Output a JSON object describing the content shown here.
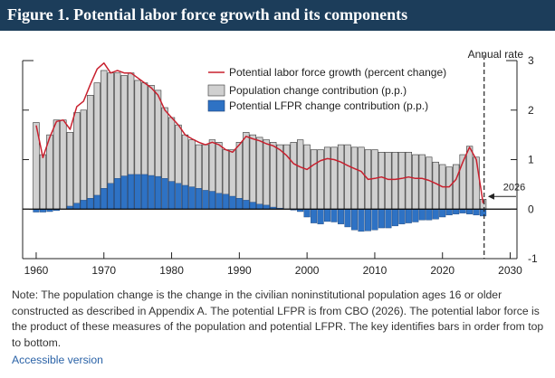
{
  "title": "Figure 1. Potential labor force growth and its components",
  "note": "Note: The population change is the change in the civilian noninstitutional population ages 16 or older constructed as described in Appendix A. The potential LFPR is from CBO (2026). The potential labor force is the product of these measures of the population and potential LFPR. The key identifies bars in order from top to bottom.",
  "accessible_link": "Accessible version",
  "colors": {
    "population": "#d0d0d0",
    "lfpr": "#2e72c4",
    "line": "#c8202e",
    "title_bg": "#1c3d5a"
  },
  "chart_data": {
    "type": "bar",
    "title": "Figure 1. Potential labor force growth and its components",
    "right_axis_label": "Annual rate",
    "projection_marker": {
      "x": 2026,
      "label": "2026"
    },
    "xlim": [
      1958,
      2031
    ],
    "ylim": [
      -1,
      3
    ],
    "x_ticks": [
      1960,
      1970,
      1980,
      1990,
      2000,
      2010,
      2020,
      2030
    ],
    "x_tick_labels": [
      "1960",
      "1970",
      "1980",
      "1990",
      "2000",
      "2010",
      "2020",
      "2030"
    ],
    "y_ticks": [
      -1,
      0,
      1,
      2,
      3
    ],
    "y_tick_labels": [
      "-1",
      "0",
      "1",
      "2",
      "3"
    ],
    "legend": [
      {
        "label": "Potential labor force growth (percent change)",
        "kind": "line"
      },
      {
        "label": "Population change contribution (p.p.)",
        "kind": "bar-gray"
      },
      {
        "label": "Potential LFPR change contribution (p.p.)",
        "kind": "bar-blue"
      }
    ],
    "x": [
      1960,
      1961,
      1962,
      1963,
      1964,
      1965,
      1966,
      1967,
      1968,
      1969,
      1970,
      1971,
      1972,
      1973,
      1974,
      1975,
      1976,
      1977,
      1978,
      1979,
      1980,
      1981,
      1982,
      1983,
      1984,
      1985,
      1986,
      1987,
      1988,
      1989,
      1990,
      1991,
      1992,
      1993,
      1994,
      1995,
      1996,
      1997,
      1998,
      1999,
      2000,
      2001,
      2002,
      2003,
      2004,
      2005,
      2006,
      2007,
      2008,
      2009,
      2010,
      2011,
      2012,
      2013,
      2014,
      2015,
      2016,
      2017,
      2018,
      2019,
      2020,
      2021,
      2022,
      2023,
      2024,
      2025,
      2026
    ],
    "series": [
      {
        "name": "Population change contribution (p.p.)",
        "values": [
          1.75,
          1.1,
          1.5,
          1.8,
          1.8,
          1.55,
          1.95,
          2.0,
          2.3,
          2.55,
          2.8,
          2.75,
          2.75,
          2.7,
          2.75,
          2.6,
          2.55,
          2.5,
          2.4,
          2.05,
          1.85,
          1.7,
          1.5,
          1.4,
          1.3,
          1.3,
          1.4,
          1.35,
          1.2,
          1.2,
          1.35,
          1.55,
          1.5,
          1.45,
          1.4,
          1.35,
          1.3,
          1.3,
          1.35,
          1.4,
          1.3,
          1.2,
          1.2,
          1.25,
          1.25,
          1.3,
          1.3,
          1.25,
          1.25,
          1.2,
          1.2,
          1.15,
          1.15,
          1.15,
          1.15,
          1.15,
          1.1,
          1.1,
          1.05,
          0.95,
          0.9,
          0.85,
          0.9,
          1.1,
          1.27,
          1.05,
          0.2
        ]
      },
      {
        "name": "Potential LFPR change contribution (p.p.)",
        "values": [
          -0.06,
          -0.06,
          -0.05,
          -0.03,
          0.0,
          0.06,
          0.12,
          0.18,
          0.22,
          0.28,
          0.42,
          0.52,
          0.62,
          0.67,
          0.7,
          0.7,
          0.7,
          0.68,
          0.66,
          0.62,
          0.56,
          0.52,
          0.48,
          0.45,
          0.42,
          0.38,
          0.36,
          0.32,
          0.3,
          0.26,
          0.22,
          0.18,
          0.14,
          0.1,
          0.08,
          0.04,
          0.02,
          0.0,
          -0.02,
          -0.05,
          -0.16,
          -0.28,
          -0.3,
          -0.25,
          -0.26,
          -0.3,
          -0.36,
          -0.42,
          -0.45,
          -0.44,
          -0.42,
          -0.38,
          -0.38,
          -0.34,
          -0.3,
          -0.28,
          -0.26,
          -0.22,
          -0.22,
          -0.2,
          -0.16,
          -0.12,
          -0.1,
          -0.08,
          -0.1,
          -0.12,
          -0.14
        ]
      },
      {
        "name": "Potential labor force growth (percent change)",
        "values": [
          1.69,
          1.04,
          1.45,
          1.77,
          1.8,
          1.61,
          2.07,
          2.18,
          2.52,
          2.83,
          2.95,
          2.75,
          2.8,
          2.75,
          2.75,
          2.65,
          2.55,
          2.45,
          2.3,
          2.0,
          1.85,
          1.7,
          1.5,
          1.42,
          1.35,
          1.3,
          1.35,
          1.3,
          1.2,
          1.15,
          1.3,
          1.47,
          1.42,
          1.38,
          1.32,
          1.28,
          1.2,
          1.08,
          0.92,
          0.85,
          0.8,
          0.9,
          0.98,
          1.02,
          1.0,
          0.95,
          0.88,
          0.82,
          0.76,
          0.6,
          0.62,
          0.65,
          0.6,
          0.6,
          0.62,
          0.65,
          0.62,
          0.62,
          0.58,
          0.52,
          0.45,
          0.45,
          0.6,
          0.95,
          1.25,
          1.0,
          0.12
        ]
      }
    ]
  }
}
